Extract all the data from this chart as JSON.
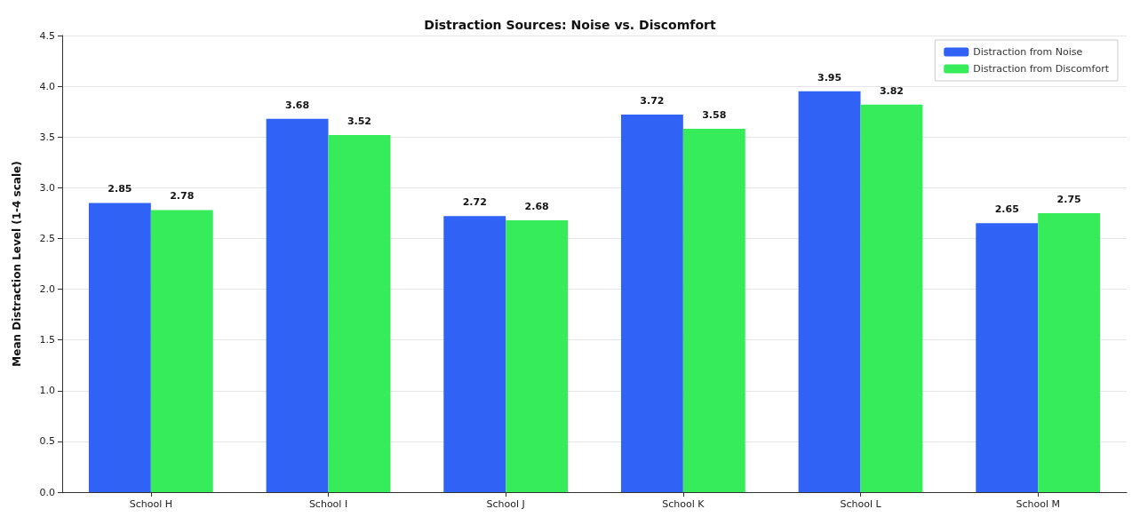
{
  "chart_data": {
    "type": "bar",
    "title": "Distraction Sources: Noise vs. Discomfort",
    "ylabel": "Mean Distraction Level (1-4 scale)",
    "categories": [
      "School H",
      "School I",
      "School J",
      "School K",
      "School L",
      "School M"
    ],
    "series": [
      {
        "name": "Distraction from Noise",
        "color": "#2f62f5",
        "values": [
          2.85,
          3.68,
          2.72,
          3.72,
          3.95,
          2.65
        ]
      },
      {
        "name": "Distraction from Discomfort",
        "color": "#36ec5a",
        "values": [
          2.78,
          3.52,
          2.68,
          3.58,
          3.82,
          2.75
        ]
      }
    ],
    "ylim": [
      0,
      4.5
    ],
    "yticks": [
      {
        "value": 0,
        "label": "0.0"
      },
      0.5,
      {
        "value": 1,
        "label": "1.0"
      },
      1.5,
      {
        "value": 2,
        "label": "2.0"
      },
      2.5,
      {
        "value": 3,
        "label": "3.0"
      },
      3.5,
      {
        "value": 4,
        "label": "4.0"
      },
      4.5
    ],
    "grid": "y",
    "legend": "top right",
    "data_labels": true
  }
}
